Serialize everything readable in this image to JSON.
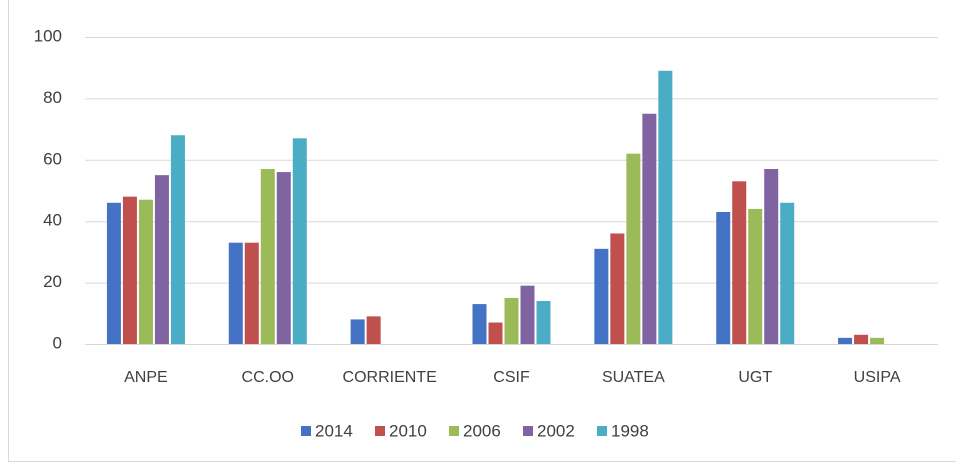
{
  "chart_data": {
    "type": "bar",
    "categories": [
      "ANPE",
      "CC.OO",
      "CORRIENTE",
      "CSIF",
      "SUATEA",
      "UGT",
      "USIPA"
    ],
    "series": [
      {
        "name": "2014",
        "color": "#4472c4",
        "values": [
          46,
          33,
          8,
          13,
          31,
          43,
          2
        ]
      },
      {
        "name": "2010",
        "color": "#c0504d",
        "values": [
          48,
          33,
          9,
          7,
          36,
          53,
          3
        ]
      },
      {
        "name": "2006",
        "color": "#9bbb59",
        "values": [
          47,
          57,
          null,
          15,
          62,
          44,
          2
        ]
      },
      {
        "name": "2002",
        "color": "#8064a2",
        "values": [
          55,
          56,
          null,
          19,
          75,
          57,
          null
        ]
      },
      {
        "name": "1998",
        "color": "#4bacc6",
        "values": [
          68,
          67,
          null,
          14,
          89,
          46,
          null
        ]
      }
    ],
    "ylim": [
      0,
      100
    ],
    "yticks": [
      0,
      20,
      40,
      60,
      80,
      100
    ],
    "grid": true,
    "legend": "bottom"
  }
}
